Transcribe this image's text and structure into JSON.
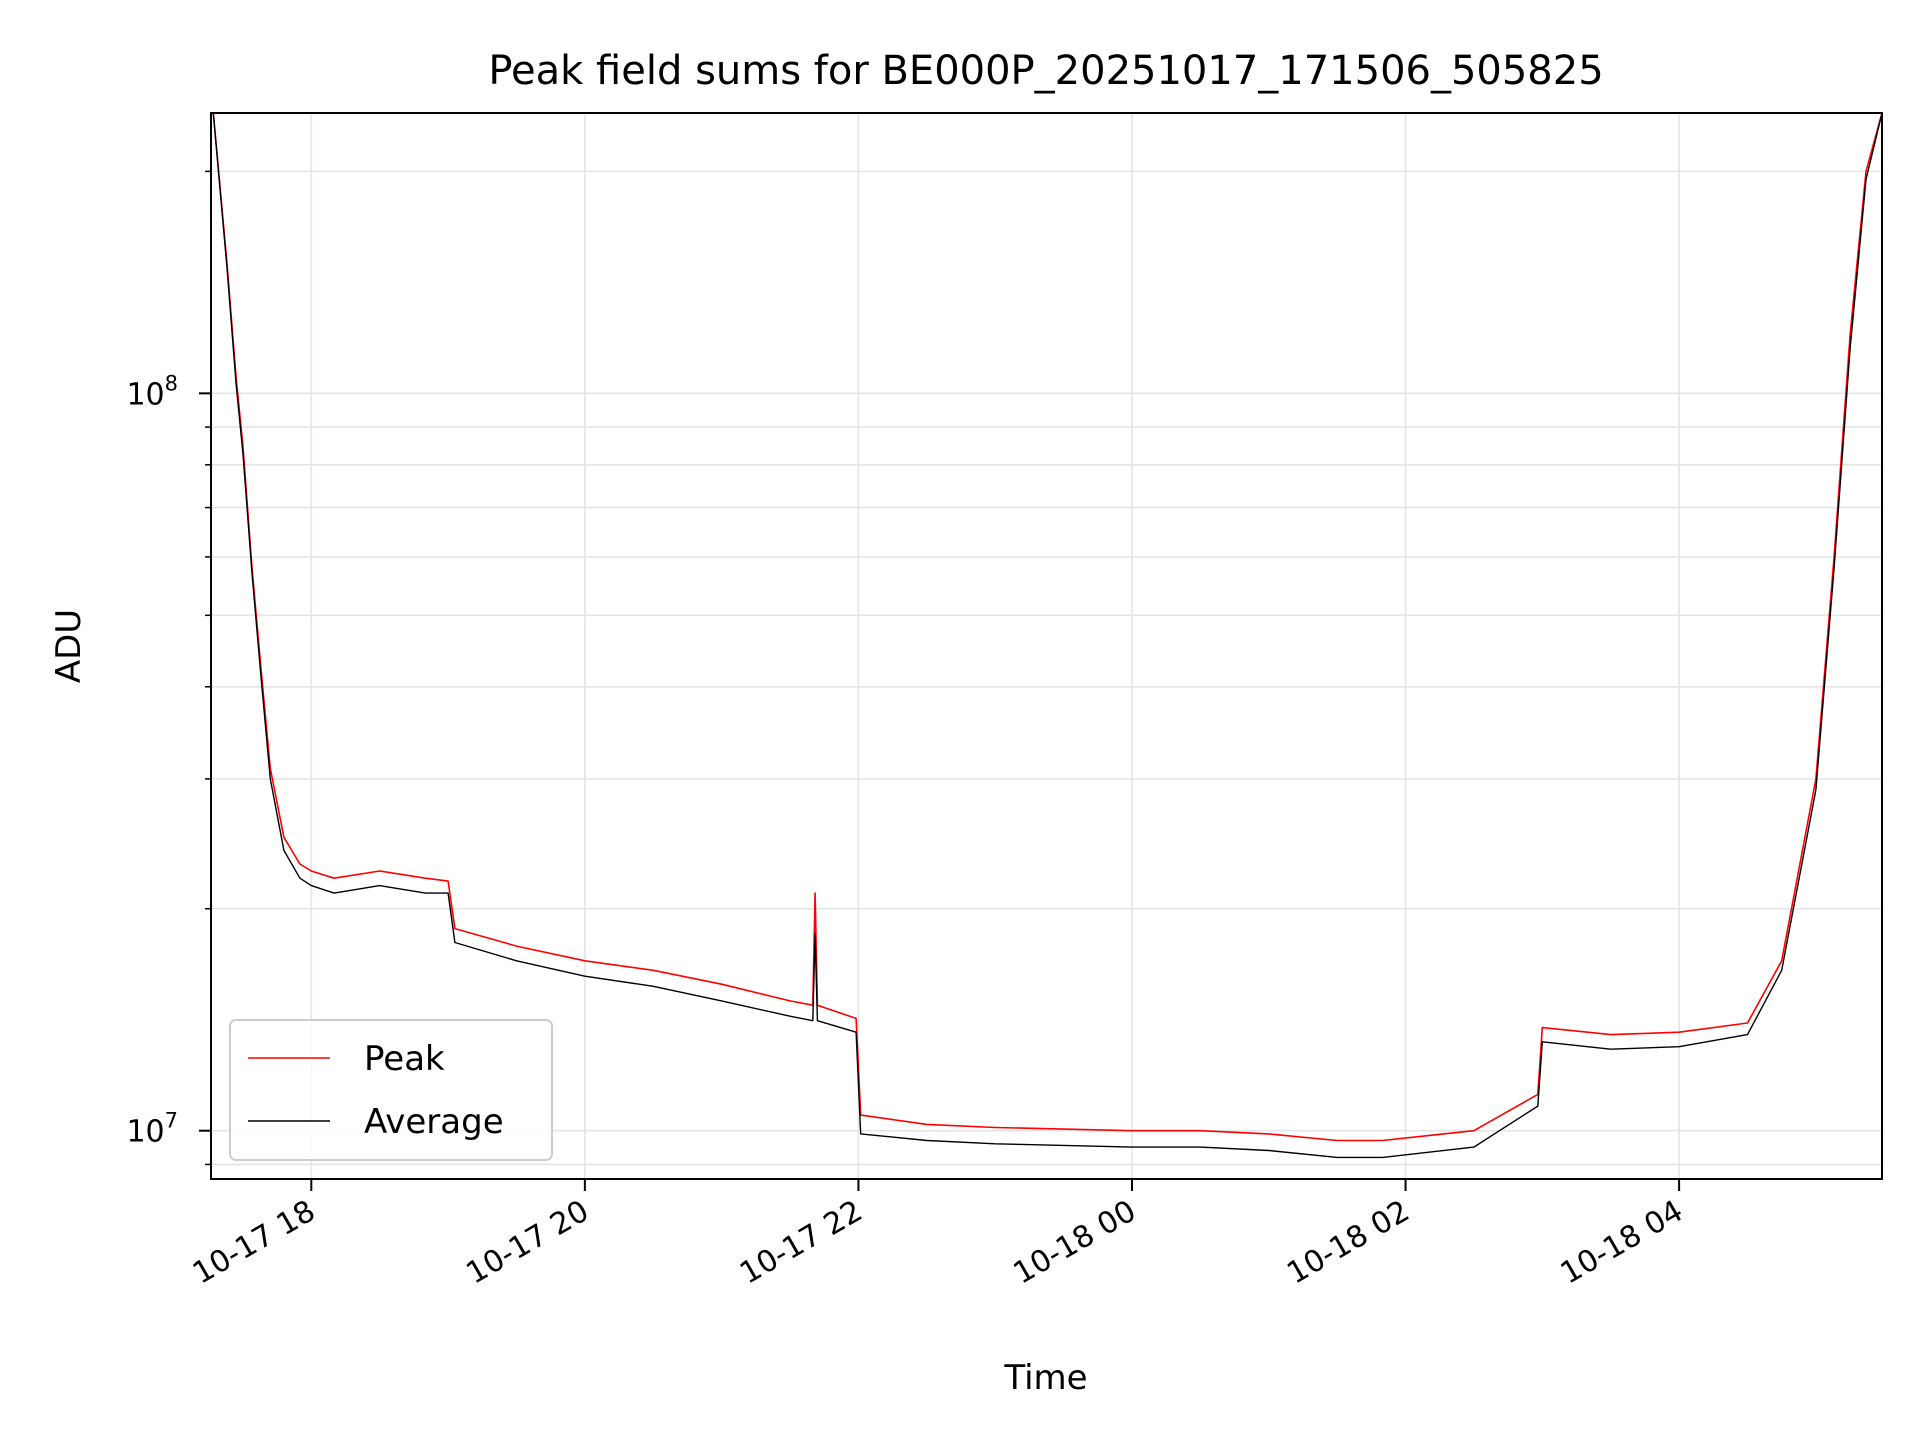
{
  "chart_data": {
    "type": "line",
    "title": "Peak field sums for BE000P_20251017_171506_505825",
    "xlabel": "Time",
    "ylabel": "ADU",
    "y_scale": "log",
    "ylim": [
      8600000,
      240000000
    ],
    "xlim": [
      "2025-10-17 17:16",
      "2025-10-18 05:29"
    ],
    "grid": true,
    "legend_position": "lower-left",
    "x_ticks": [
      {
        "value": "2025-10-17 18:00",
        "label": "10-17 18"
      },
      {
        "value": "2025-10-17 20:00",
        "label": "10-17 20"
      },
      {
        "value": "2025-10-17 22:00",
        "label": "10-17 22"
      },
      {
        "value": "2025-10-18 00:00",
        "label": "10-18 00"
      },
      {
        "value": "2025-10-18 02:00",
        "label": "10-18 02"
      },
      {
        "value": "2025-10-18 04:00",
        "label": "10-18 04"
      }
    ],
    "y_ticks": [
      {
        "value": 10000000,
        "base": "10",
        "exp": "7"
      },
      {
        "value": 100000000,
        "base": "10",
        "exp": "8"
      }
    ],
    "series": [
      {
        "name": "Peak",
        "color": "#ff0000",
        "x": [
          "2025-10-17 17:17",
          "2025-10-17 17:23",
          "2025-10-17 17:27",
          "2025-10-17 17:30",
          "2025-10-17 17:34",
          "2025-10-17 17:38",
          "2025-10-17 17:42",
          "2025-10-17 17:48",
          "2025-10-17 17:55",
          "2025-10-17 18:00",
          "2025-10-17 18:10",
          "2025-10-17 18:30",
          "2025-10-17 18:50",
          "2025-10-17 19:00",
          "2025-10-17 19:03",
          "2025-10-17 19:30",
          "2025-10-17 20:00",
          "2025-10-17 20:30",
          "2025-10-17 21:00",
          "2025-10-17 21:30",
          "2025-10-17 21:40",
          "2025-10-17 21:41",
          "2025-10-17 21:42",
          "2025-10-17 21:59",
          "2025-10-17 22:01",
          "2025-10-17 22:30",
          "2025-10-17 23:00",
          "2025-10-17 23:30",
          "2025-10-18 00:00",
          "2025-10-18 00:30",
          "2025-10-18 01:00",
          "2025-10-18 01:30",
          "2025-10-18 01:50",
          "2025-10-18 02:30",
          "2025-10-18 02:58",
          "2025-10-18 03:00",
          "2025-10-18 03:30",
          "2025-10-18 04:00",
          "2025-10-18 04:30",
          "2025-10-18 04:45",
          "2025-10-18 05:00",
          "2025-10-18 05:08",
          "2025-10-18 05:15",
          "2025-10-18 05:22",
          "2025-10-18 05:29"
        ],
        "y": [
          240000000,
          150000000,
          105000000,
          85000000,
          58000000,
          42000000,
          31000000,
          25000000,
          23000000,
          22500000,
          22000000,
          22500000,
          22000000,
          21800000,
          18800000,
          17800000,
          17000000,
          16500000,
          15800000,
          15000000,
          14800000,
          21000000,
          14800000,
          14200000,
          10500000,
          10200000,
          10100000,
          10050000,
          10000000,
          10000000,
          9900000,
          9700000,
          9700000,
          10000000,
          11200000,
          13800000,
          13500000,
          13600000,
          14000000,
          17000000,
          30000000,
          60000000,
          120000000,
          200000000,
          240000000
        ]
      },
      {
        "name": "Average",
        "color": "#000000",
        "x": [
          "2025-10-17 17:17",
          "2025-10-17 17:23",
          "2025-10-17 17:27",
          "2025-10-17 17:30",
          "2025-10-17 17:34",
          "2025-10-17 17:38",
          "2025-10-17 17:42",
          "2025-10-17 17:48",
          "2025-10-17 17:55",
          "2025-10-17 18:00",
          "2025-10-17 18:10",
          "2025-10-17 18:30",
          "2025-10-17 18:50",
          "2025-10-17 19:00",
          "2025-10-17 19:03",
          "2025-10-17 19:30",
          "2025-10-17 20:00",
          "2025-10-17 20:30",
          "2025-10-17 21:00",
          "2025-10-17 21:30",
          "2025-10-17 21:40",
          "2025-10-17 21:41",
          "2025-10-17 21:42",
          "2025-10-17 21:59",
          "2025-10-17 22:01",
          "2025-10-17 22:30",
          "2025-10-17 23:00",
          "2025-10-17 23:30",
          "2025-10-18 00:00",
          "2025-10-18 00:30",
          "2025-10-18 01:00",
          "2025-10-18 01:30",
          "2025-10-18 01:50",
          "2025-10-18 02:30",
          "2025-10-18 02:58",
          "2025-10-18 03:00",
          "2025-10-18 03:30",
          "2025-10-18 04:00",
          "2025-10-18 04:30",
          "2025-10-18 04:45",
          "2025-10-18 05:00",
          "2025-10-18 05:08",
          "2025-10-18 05:15",
          "2025-10-18 05:22",
          "2025-10-18 05:29"
        ],
        "y": [
          240000000,
          148000000,
          103000000,
          83000000,
          57000000,
          41000000,
          30000000,
          24000000,
          22000000,
          21500000,
          21000000,
          21500000,
          21000000,
          21000000,
          18000000,
          17000000,
          16200000,
          15700000,
          15000000,
          14300000,
          14100000,
          18500000,
          14100000,
          13600000,
          9900000,
          9700000,
          9600000,
          9550000,
          9500000,
          9500000,
          9400000,
          9200000,
          9200000,
          9500000,
          10800000,
          13200000,
          12900000,
          13000000,
          13500000,
          16500000,
          29000000,
          58000000,
          115000000,
          195000000,
          240000000
        ]
      }
    ]
  }
}
